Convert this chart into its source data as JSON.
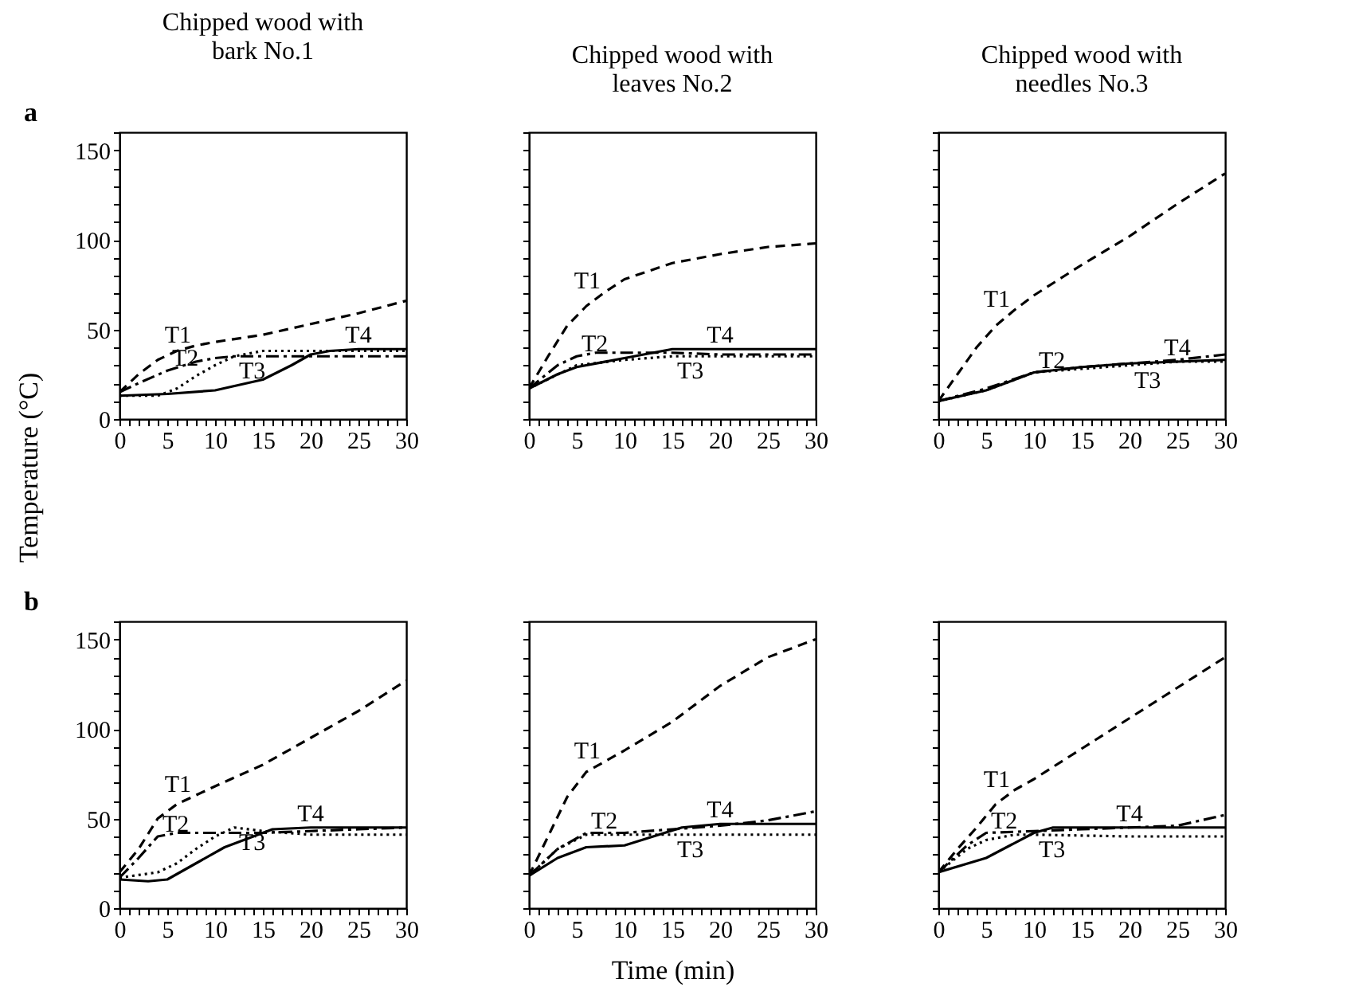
{
  "chart_data": [
    {
      "type": "line",
      "title": "Chipped wood with bark No.1",
      "ylabel": "Temperature (°C)",
      "annotations": [
        "a"
      ],
      "xlim": [
        0,
        30
      ],
      "ylim": [
        0,
        160
      ],
      "xticks": [
        0,
        {
          "value": 1,
          "label": null
        },
        {
          "value": 2,
          "label": null
        },
        {
          "value": 3,
          "label": null
        },
        {
          "value": 4,
          "label": null
        },
        5,
        {
          "value": 6,
          "label": null
        },
        {
          "value": 7,
          "label": null
        },
        {
          "value": 8,
          "label": null
        },
        {
          "value": 9,
          "label": null
        },
        10,
        {
          "value": 11,
          "label": null
        },
        {
          "value": 12,
          "label": null
        },
        {
          "value": 13,
          "label": null
        },
        {
          "value": 14,
          "label": null
        },
        15,
        {
          "value": 16,
          "label": null
        },
        {
          "value": 17,
          "label": null
        },
        {
          "value": 18,
          "label": null
        },
        {
          "value": 19,
          "label": null
        },
        20,
        {
          "value": 21,
          "label": null
        },
        {
          "value": 22,
          "label": null
        },
        {
          "value": 23,
          "label": null
        },
        {
          "value": 24,
          "label": null
        },
        25,
        {
          "value": 26,
          "label": null
        },
        {
          "value": 27,
          "label": null
        },
        {
          "value": 28,
          "label": null
        },
        {
          "value": 29,
          "label": null
        },
        30
      ],
      "yticks": [
        0,
        {
          "value": 10,
          "label": null
        },
        {
          "value": 20,
          "label": null
        },
        {
          "value": 30,
          "label": null
        },
        {
          "value": 40,
          "label": null
        },
        50,
        {
          "value": 60,
          "label": null
        },
        {
          "value": 70,
          "label": null
        },
        {
          "value": 80,
          "label": null
        },
        {
          "value": 90,
          "label": null
        },
        100,
        {
          "value": 110,
          "label": null
        },
        {
          "value": 120,
          "label": null
        },
        {
          "value": 130,
          "label": null
        },
        {
          "value": 140,
          "label": null
        },
        150,
        {
          "value": 160,
          "label": null
        }
      ],
      "grid": false,
      "series": [
        {
          "name": "T1",
          "color": "#000000",
          "line_style": "dashed",
          "x": [
            0,
            2,
            4,
            6,
            8,
            10,
            15,
            20,
            25,
            30
          ],
          "values": [
            15,
            25,
            33,
            38,
            41,
            43,
            47,
            53,
            59,
            66
          ]
        },
        {
          "name": "T2",
          "color": "#000000",
          "line_style": "dashdot",
          "x": [
            0,
            2,
            5,
            8,
            10,
            12,
            15,
            20,
            25,
            30
          ],
          "values": [
            15,
            20,
            27,
            32,
            34,
            35,
            35,
            35,
            35,
            35
          ]
        },
        {
          "name": "T3",
          "color": "#000000",
          "line_style": "dotted",
          "x": [
            0,
            4,
            6,
            8,
            10,
            12,
            15,
            20,
            25,
            30
          ],
          "values": [
            13,
            13,
            17,
            24,
            30,
            35,
            38,
            38,
            38,
            38
          ]
        },
        {
          "name": "T4",
          "color": "#000000",
          "line_style": "solid",
          "x": [
            0,
            5,
            10,
            15,
            18,
            20,
            22,
            25,
            30
          ],
          "values": [
            13,
            14,
            16,
            22,
            30,
            36,
            38,
            39,
            39
          ]
        }
      ]
    },
    {
      "type": "line",
      "title": "Chipped wood with leaves No.2",
      "tick_labels": "x",
      "xlim": [
        0,
        30
      ],
      "ylim": [
        0,
        160
      ],
      "xticks": [
        0,
        {
          "value": 1,
          "label": null
        },
        {
          "value": 2,
          "label": null
        },
        {
          "value": 3,
          "label": null
        },
        {
          "value": 4,
          "label": null
        },
        5,
        {
          "value": 6,
          "label": null
        },
        {
          "value": 7,
          "label": null
        },
        {
          "value": 8,
          "label": null
        },
        {
          "value": 9,
          "label": null
        },
        10,
        {
          "value": 11,
          "label": null
        },
        {
          "value": 12,
          "label": null
        },
        {
          "value": 13,
          "label": null
        },
        {
          "value": 14,
          "label": null
        },
        15,
        {
          "value": 16,
          "label": null
        },
        {
          "value": 17,
          "label": null
        },
        {
          "value": 18,
          "label": null
        },
        {
          "value": 19,
          "label": null
        },
        20,
        {
          "value": 21,
          "label": null
        },
        {
          "value": 22,
          "label": null
        },
        {
          "value": 23,
          "label": null
        },
        {
          "value": 24,
          "label": null
        },
        25,
        {
          "value": 26,
          "label": null
        },
        {
          "value": 27,
          "label": null
        },
        {
          "value": 28,
          "label": null
        },
        {
          "value": 29,
          "label": null
        },
        30
      ],
      "grid": false,
      "series": [
        {
          "name": "T1",
          "color": "#000000",
          "line_style": "dashed",
          "x": [
            0,
            2,
            4,
            6,
            8,
            10,
            15,
            20,
            25,
            30
          ],
          "values": [
            17,
            35,
            52,
            63,
            71,
            78,
            87,
            92,
            96,
            98
          ]
        },
        {
          "name": "T2",
          "color": "#000000",
          "line_style": "dashdot",
          "x": [
            0,
            3,
            5,
            7,
            10,
            15,
            20,
            30
          ],
          "values": [
            17,
            30,
            35,
            37,
            37,
            37,
            36,
            36
          ]
        },
        {
          "name": "T3",
          "color": "#000000",
          "line_style": "dotted",
          "x": [
            0,
            5,
            10,
            15,
            20,
            30
          ],
          "values": [
            17,
            30,
            33,
            35,
            35,
            35
          ]
        },
        {
          "name": "T4",
          "color": "#000000",
          "line_style": "solid",
          "x": [
            0,
            3,
            5,
            10,
            15,
            20,
            30
          ],
          "values": [
            17,
            25,
            29,
            34,
            39,
            39,
            39
          ]
        }
      ]
    },
    {
      "type": "line",
      "title": "Chipped wood with needles No.3",
      "tick_labels": "x",
      "xlim": [
        0,
        30
      ],
      "ylim": [
        0,
        160
      ],
      "xticks": [
        0,
        {
          "value": 1,
          "label": null
        },
        {
          "value": 2,
          "label": null
        },
        {
          "value": 3,
          "label": null
        },
        {
          "value": 4,
          "label": null
        },
        5,
        {
          "value": 6,
          "label": null
        },
        {
          "value": 7,
          "label": null
        },
        {
          "value": 8,
          "label": null
        },
        {
          "value": 9,
          "label": null
        },
        10,
        {
          "value": 11,
          "label": null
        },
        {
          "value": 12,
          "label": null
        },
        {
          "value": 13,
          "label": null
        },
        {
          "value": 14,
          "label": null
        },
        15,
        {
          "value": 16,
          "label": null
        },
        {
          "value": 17,
          "label": null
        },
        {
          "value": 18,
          "label": null
        },
        {
          "value": 19,
          "label": null
        },
        20,
        {
          "value": 21,
          "label": null
        },
        {
          "value": 22,
          "label": null
        },
        {
          "value": 23,
          "label": null
        },
        {
          "value": 24,
          "label": null
        },
        25,
        {
          "value": 26,
          "label": null
        },
        {
          "value": 27,
          "label": null
        },
        {
          "value": 28,
          "label": null
        },
        {
          "value": 29,
          "label": null
        },
        30
      ],
      "grid": false,
      "series": [
        {
          "name": "T1",
          "color": "#000000",
          "line_style": "dashed",
          "x": [
            0,
            2,
            4,
            6,
            8,
            10,
            15,
            20,
            25,
            30
          ],
          "values": [
            10,
            25,
            40,
            52,
            61,
            69,
            86,
            102,
            120,
            137
          ]
        },
        {
          "name": "T2",
          "color": "#000000",
          "line_style": "dashdot",
          "x": [
            0,
            5,
            10,
            15,
            20,
            25,
            30
          ],
          "values": [
            10,
            17,
            26,
            29,
            31,
            33,
            36
          ]
        },
        {
          "name": "T3",
          "color": "#000000",
          "line_style": "dotted",
          "x": [
            0,
            5,
            10,
            15,
            20,
            25,
            30
          ],
          "values": [
            10,
            16,
            26,
            28,
            30,
            32,
            32
          ]
        },
        {
          "name": "T4",
          "color": "#000000",
          "line_style": "solid",
          "x": [
            0,
            5,
            10,
            15,
            20,
            25,
            30
          ],
          "values": [
            10,
            16,
            26,
            29,
            31,
            32,
            33
          ]
        }
      ]
    },
    {
      "type": "line",
      "annotations": [
        "b"
      ],
      "xlim": [
        0,
        30
      ],
      "ylim": [
        0,
        160
      ],
      "xticks": [
        0,
        {
          "value": 1,
          "label": null
        },
        {
          "value": 2,
          "label": null
        },
        {
          "value": 3,
          "label": null
        },
        {
          "value": 4,
          "label": null
        },
        5,
        {
          "value": 6,
          "label": null
        },
        {
          "value": 7,
          "label": null
        },
        {
          "value": 8,
          "label": null
        },
        {
          "value": 9,
          "label": null
        },
        10,
        {
          "value": 11,
          "label": null
        },
        {
          "value": 12,
          "label": null
        },
        {
          "value": 13,
          "label": null
        },
        {
          "value": 14,
          "label": null
        },
        15,
        {
          "value": 16,
          "label": null
        },
        {
          "value": 17,
          "label": null
        },
        {
          "value": 18,
          "label": null
        },
        {
          "value": 19,
          "label": null
        },
        20,
        {
          "value": 21,
          "label": null
        },
        {
          "value": 22,
          "label": null
        },
        {
          "value": 23,
          "label": null
        },
        {
          "value": 24,
          "label": null
        },
        25,
        {
          "value": 26,
          "label": null
        },
        {
          "value": 27,
          "label": null
        },
        {
          "value": 28,
          "label": null
        },
        {
          "value": 29,
          "label": null
        },
        30
      ],
      "yticks": [
        0,
        {
          "value": 10,
          "label": null
        },
        {
          "value": 20,
          "label": null
        },
        {
          "value": 30,
          "label": null
        },
        {
          "value": 40,
          "label": null
        },
        50,
        {
          "value": 60,
          "label": null
        },
        {
          "value": 70,
          "label": null
        },
        {
          "value": 80,
          "label": null
        },
        {
          "value": 90,
          "label": null
        },
        100,
        {
          "value": 110,
          "label": null
        },
        {
          "value": 120,
          "label": null
        },
        {
          "value": 130,
          "label": null
        },
        {
          "value": 140,
          "label": null
        },
        150,
        {
          "value": 160,
          "label": null
        }
      ],
      "grid": false,
      "series": [
        {
          "name": "T1",
          "color": "#000000",
          "line_style": "dashed",
          "x": [
            0,
            2,
            4,
            6,
            8,
            10,
            15,
            20,
            25,
            30
          ],
          "values": [
            20,
            33,
            50,
            58,
            63,
            68,
            80,
            95,
            110,
            127
          ]
        },
        {
          "name": "T2",
          "color": "#000000",
          "line_style": "dashdot",
          "x": [
            0,
            2,
            4,
            6,
            10,
            15,
            20,
            25,
            30
          ],
          "values": [
            17,
            28,
            40,
            42,
            42,
            42,
            43,
            44,
            45
          ]
        },
        {
          "name": "T3",
          "color": "#000000",
          "line_style": "dotted",
          "x": [
            0,
            4,
            6,
            8,
            10,
            12,
            15,
            20,
            25,
            30
          ],
          "values": [
            17,
            20,
            25,
            33,
            40,
            45,
            43,
            41,
            41,
            41
          ]
        },
        {
          "name": "T4",
          "color": "#000000",
          "line_style": "solid",
          "x": [
            0,
            3,
            5,
            8,
            11,
            14,
            16,
            20,
            30
          ],
          "values": [
            16,
            15,
            16,
            25,
            34,
            40,
            44,
            45,
            45
          ]
        }
      ]
    },
    {
      "type": "line",
      "xlabel": "Time (min)",
      "tick_labels": "x",
      "xlim": [
        0,
        30
      ],
      "ylim": [
        0,
        160
      ],
      "xticks": [
        0,
        {
          "value": 1,
          "label": null
        },
        {
          "value": 2,
          "label": null
        },
        {
          "value": 3,
          "label": null
        },
        {
          "value": 4,
          "label": null
        },
        5,
        {
          "value": 6,
          "label": null
        },
        {
          "value": 7,
          "label": null
        },
        {
          "value": 8,
          "label": null
        },
        {
          "value": 9,
          "label": null
        },
        10,
        {
          "value": 11,
          "label": null
        },
        {
          "value": 12,
          "label": null
        },
        {
          "value": 13,
          "label": null
        },
        {
          "value": 14,
          "label": null
        },
        15,
        {
          "value": 16,
          "label": null
        },
        {
          "value": 17,
          "label": null
        },
        {
          "value": 18,
          "label": null
        },
        {
          "value": 19,
          "label": null
        },
        20,
        {
          "value": 21,
          "label": null
        },
        {
          "value": 22,
          "label": null
        },
        {
          "value": 23,
          "label": null
        },
        {
          "value": 24,
          "label": null
        },
        25,
        {
          "value": 26,
          "label": null
        },
        {
          "value": 27,
          "label": null
        },
        {
          "value": 28,
          "label": null
        },
        {
          "value": 29,
          "label": null
        },
        30
      ],
      "grid": false,
      "series": [
        {
          "name": "T1",
          "color": "#000000",
          "line_style": "dashed",
          "x": [
            0,
            2,
            4,
            6,
            8,
            10,
            15,
            20,
            25,
            30
          ],
          "values": [
            18,
            40,
            62,
            76,
            82,
            88,
            104,
            124,
            140,
            150
          ]
        },
        {
          "name": "T2",
          "color": "#000000",
          "line_style": "dashdot",
          "x": [
            0,
            3,
            6,
            10,
            15,
            20,
            25,
            30
          ],
          "values": [
            18,
            33,
            42,
            42,
            44,
            46,
            49,
            54
          ]
        },
        {
          "name": "T3",
          "color": "#000000",
          "line_style": "dotted",
          "x": [
            0,
            3,
            6,
            10,
            15,
            20,
            30
          ],
          "values": [
            18,
            33,
            41,
            41,
            41,
            41,
            41
          ]
        },
        {
          "name": "T4",
          "color": "#000000",
          "line_style": "solid",
          "x": [
            0,
            3,
            6,
            10,
            13,
            16,
            20,
            30
          ],
          "values": [
            18,
            28,
            34,
            35,
            40,
            45,
            47,
            47
          ]
        }
      ]
    },
    {
      "type": "line",
      "tick_labels": "x",
      "xlim": [
        0,
        30
      ],
      "ylim": [
        0,
        160
      ],
      "xticks": [
        0,
        {
          "value": 1,
          "label": null
        },
        {
          "value": 2,
          "label": null
        },
        {
          "value": 3,
          "label": null
        },
        {
          "value": 4,
          "label": null
        },
        5,
        {
          "value": 6,
          "label": null
        },
        {
          "value": 7,
          "label": null
        },
        {
          "value": 8,
          "label": null
        },
        {
          "value": 9,
          "label": null
        },
        10,
        {
          "value": 11,
          "label": null
        },
        {
          "value": 12,
          "label": null
        },
        {
          "value": 13,
          "label": null
        },
        {
          "value": 14,
          "label": null
        },
        15,
        {
          "value": 16,
          "label": null
        },
        {
          "value": 17,
          "label": null
        },
        {
          "value": 18,
          "label": null
        },
        {
          "value": 19,
          "label": null
        },
        20,
        {
          "value": 21,
          "label": null
        },
        {
          "value": 22,
          "label": null
        },
        {
          "value": 23,
          "label": null
        },
        {
          "value": 24,
          "label": null
        },
        25,
        {
          "value": 26,
          "label": null
        },
        {
          "value": 27,
          "label": null
        },
        {
          "value": 28,
          "label": null
        },
        {
          "value": 29,
          "label": null
        },
        30
      ],
      "grid": false,
      "series": [
        {
          "name": "T1",
          "color": "#000000",
          "line_style": "dashed",
          "x": [
            0,
            2,
            4,
            6,
            8,
            10,
            15,
            20,
            25,
            30
          ],
          "values": [
            20,
            33,
            45,
            58,
            66,
            72,
            89,
            106,
            123,
            140
          ]
        },
        {
          "name": "T2",
          "color": "#000000",
          "line_style": "dashdot",
          "x": [
            0,
            3,
            5,
            10,
            15,
            20,
            25,
            30
          ],
          "values": [
            20,
            35,
            42,
            43,
            44,
            45,
            46,
            52
          ]
        },
        {
          "name": "T3",
          "color": "#000000",
          "line_style": "dotted",
          "x": [
            0,
            3,
            5,
            8,
            10,
            20,
            30
          ],
          "values": [
            20,
            33,
            38,
            41,
            41,
            40,
            40
          ]
        },
        {
          "name": "T4",
          "color": "#000000",
          "line_style": "solid",
          "x": [
            0,
            5,
            10,
            12,
            20,
            30
          ],
          "values": [
            20,
            28,
            42,
            45,
            45,
            45
          ]
        }
      ]
    }
  ]
}
